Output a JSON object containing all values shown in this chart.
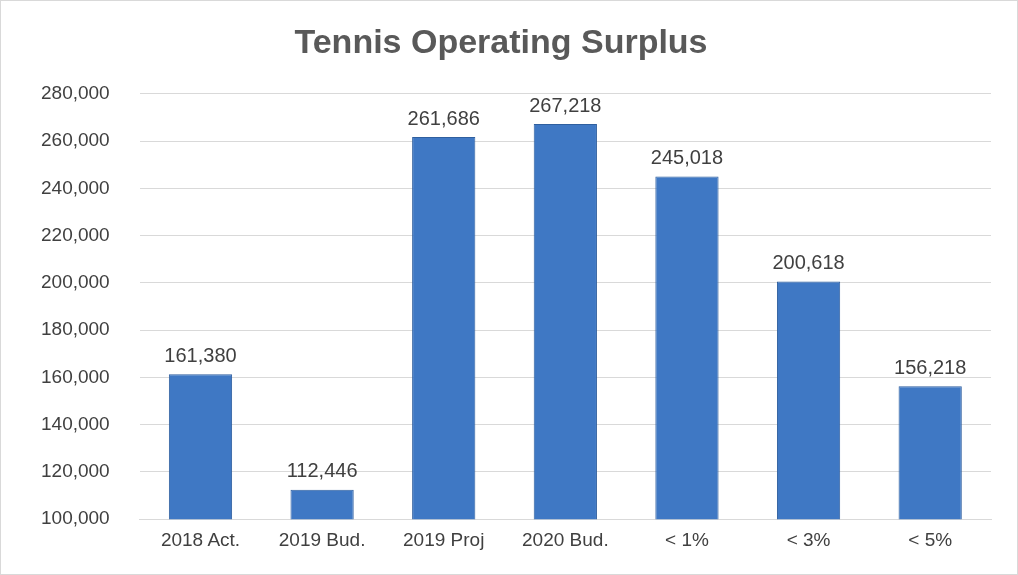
{
  "chart_data": {
    "type": "bar",
    "title": "Tennis Operating Surplus",
    "categories": [
      "2018 Act.",
      "2019 Bud.",
      "2019 Proj",
      "2020 Bud.",
      "< 1%",
      "< 3%",
      "< 5%"
    ],
    "values": [
      161380,
      112446,
      261686,
      267218,
      245018,
      200618,
      156218
    ],
    "value_labels": [
      "161,380",
      "112,446",
      "261,686",
      "267,218",
      "245,018",
      "200,618",
      "156,218"
    ],
    "color": "#3f78c4",
    "ylim": [
      100000,
      280000
    ],
    "yticks": [
      {
        "value": 100000,
        "label": "100,000"
      },
      {
        "value": 120000,
        "label": "120,000"
      },
      {
        "value": 140000,
        "label": "140,000"
      },
      {
        "value": 160000,
        "label": "160,000"
      },
      {
        "value": 180000,
        "label": "180,000"
      },
      {
        "value": 200000,
        "label": "200,000"
      },
      {
        "value": 220000,
        "label": "220,000"
      },
      {
        "value": 240000,
        "label": "240,000"
      },
      {
        "value": 260000,
        "label": "260,000"
      },
      {
        "value": 280000,
        "label": "280,000"
      }
    ],
    "grid": "y",
    "legend": false
  }
}
